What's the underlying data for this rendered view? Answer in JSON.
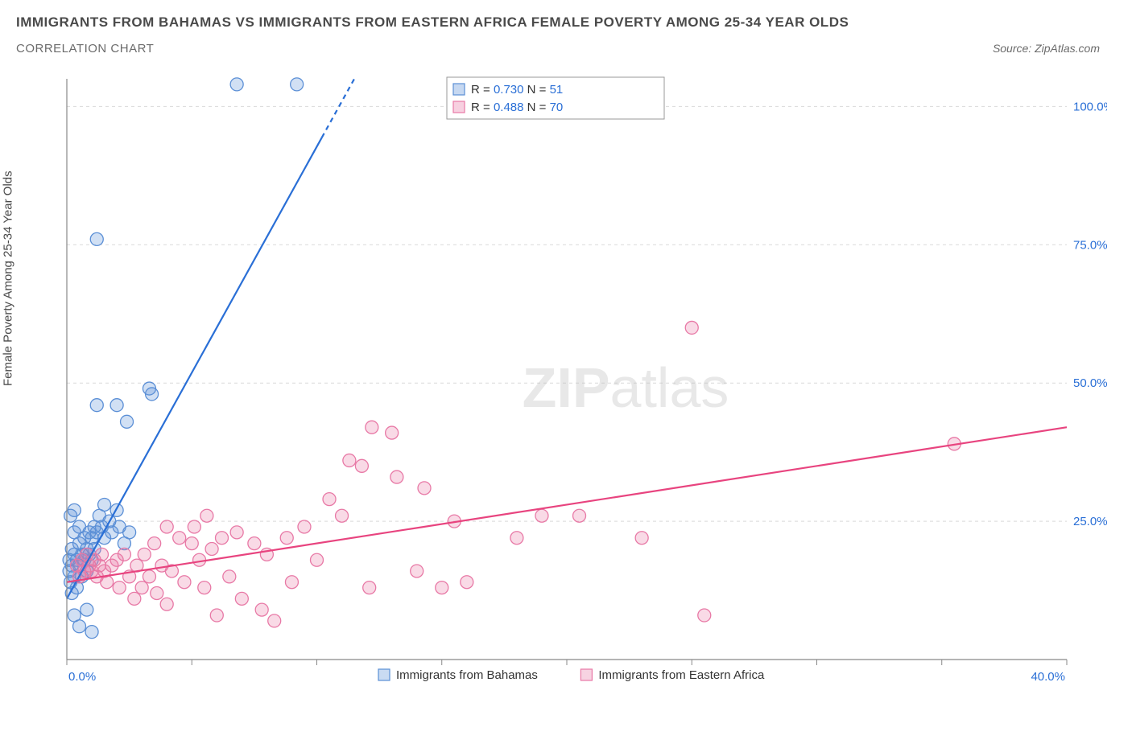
{
  "title": "IMMIGRANTS FROM BAHAMAS VS IMMIGRANTS FROM EASTERN AFRICA FEMALE POVERTY AMONG 25-34 YEAR OLDS",
  "subtitle": "CORRELATION CHART",
  "source": "Source: ZipAtlas.com",
  "ylabel": "Female Poverty Among 25-34 Year Olds",
  "chart": {
    "type": "scatter",
    "background_color": "#ffffff",
    "grid_color": "#d9d9d9",
    "axis_color": "#888888",
    "tick_color": "#888888",
    "label_color": "#2a6fd6",
    "watermark_text": "ZIPatlas",
    "xlim": [
      0,
      40
    ],
    "ylim": [
      0,
      105
    ],
    "x_ticks": [
      0,
      5,
      10,
      15,
      20,
      25,
      30,
      35,
      40
    ],
    "x_tick_labels": {
      "0": "0.0%",
      "40": "40.0%"
    },
    "y_ticks": [
      25,
      50,
      75,
      100
    ],
    "y_tick_labels": {
      "25": "25.0%",
      "50": "50.0%",
      "75": "75.0%",
      "100": "100.0%"
    },
    "marker_radius": 8,
    "marker_fill_opacity": 0.28,
    "marker_stroke_width": 1.3,
    "line_width": 2.2,
    "series": [
      {
        "name": "Immigrants from Bahamas",
        "color": "#5b8fd6",
        "line_color": "#2a6fd6",
        "R": "0.730",
        "N": "51",
        "trend": {
          "x1": 0,
          "y1": 11,
          "x2": 11.5,
          "y2": 105,
          "dash_from_x": 10.2
        },
        "points": [
          [
            0.1,
            18
          ],
          [
            0.1,
            16
          ],
          [
            0.15,
            14
          ],
          [
            0.2,
            17
          ],
          [
            0.2,
            20
          ],
          [
            0.2,
            12
          ],
          [
            0.3,
            19
          ],
          [
            0.3,
            15
          ],
          [
            0.3,
            23
          ],
          [
            0.4,
            18
          ],
          [
            0.4,
            13
          ],
          [
            0.5,
            21
          ],
          [
            0.5,
            17
          ],
          [
            0.5,
            24
          ],
          [
            0.6,
            19
          ],
          [
            0.6,
            15
          ],
          [
            0.7,
            22
          ],
          [
            0.7,
            18
          ],
          [
            0.8,
            20
          ],
          [
            0.8,
            16
          ],
          [
            0.9,
            23
          ],
          [
            0.9,
            19
          ],
          [
            1.0,
            22
          ],
          [
            1.0,
            18
          ],
          [
            1.1,
            24
          ],
          [
            1.1,
            20
          ],
          [
            1.2,
            23
          ],
          [
            1.3,
            26
          ],
          [
            1.4,
            24
          ],
          [
            1.5,
            22
          ],
          [
            1.5,
            28
          ],
          [
            1.7,
            25
          ],
          [
            1.8,
            23
          ],
          [
            2.0,
            27
          ],
          [
            2.1,
            24
          ],
          [
            2.3,
            21
          ],
          [
            2.5,
            23
          ],
          [
            0.3,
            8
          ],
          [
            0.5,
            6
          ],
          [
            0.8,
            9
          ],
          [
            1.0,
            5
          ],
          [
            1.2,
            46
          ],
          [
            2.0,
            46
          ],
          [
            2.4,
            43
          ],
          [
            3.3,
            49
          ],
          [
            3.4,
            48
          ],
          [
            1.2,
            76
          ],
          [
            6.8,
            104
          ],
          [
            9.2,
            104
          ],
          [
            0.3,
            27
          ],
          [
            0.15,
            26
          ]
        ]
      },
      {
        "name": "Immigrants from Eastern Africa",
        "color": "#e879a6",
        "line_color": "#e8447f",
        "R": "0.488",
        "N": "70",
        "trend": {
          "x1": 0,
          "y1": 14,
          "x2": 40,
          "y2": 42
        },
        "points": [
          [
            0.4,
            17
          ],
          [
            0.5,
            15
          ],
          [
            0.6,
            18
          ],
          [
            0.7,
            16
          ],
          [
            0.8,
            19
          ],
          [
            0.9,
            17
          ],
          [
            1.0,
            16
          ],
          [
            1.1,
            18
          ],
          [
            1.2,
            15
          ],
          [
            1.3,
            17
          ],
          [
            1.4,
            19
          ],
          [
            1.5,
            16
          ],
          [
            1.6,
            14
          ],
          [
            1.8,
            17
          ],
          [
            2.0,
            18
          ],
          [
            2.1,
            13
          ],
          [
            2.3,
            19
          ],
          [
            2.5,
            15
          ],
          [
            2.7,
            11
          ],
          [
            2.8,
            17
          ],
          [
            3.0,
            13
          ],
          [
            3.1,
            19
          ],
          [
            3.3,
            15
          ],
          [
            3.5,
            21
          ],
          [
            3.6,
            12
          ],
          [
            3.8,
            17
          ],
          [
            4.0,
            10
          ],
          [
            4.2,
            16
          ],
          [
            4.5,
            22
          ],
          [
            4.7,
            14
          ],
          [
            5.0,
            21
          ],
          [
            5.1,
            24
          ],
          [
            5.3,
            18
          ],
          [
            5.5,
            13
          ],
          [
            5.8,
            20
          ],
          [
            6.0,
            8
          ],
          [
            6.2,
            22
          ],
          [
            6.5,
            15
          ],
          [
            6.8,
            23
          ],
          [
            7.0,
            11
          ],
          [
            7.5,
            21
          ],
          [
            7.8,
            9
          ],
          [
            8.0,
            19
          ],
          [
            8.3,
            7
          ],
          [
            8.8,
            22
          ],
          [
            9.0,
            14
          ],
          [
            9.5,
            24
          ],
          [
            10.0,
            18
          ],
          [
            10.5,
            29
          ],
          [
            11.0,
            26
          ],
          [
            11.3,
            36
          ],
          [
            11.8,
            35
          ],
          [
            12.1,
            13
          ],
          [
            12.2,
            42
          ],
          [
            13.0,
            41
          ],
          [
            13.2,
            33
          ],
          [
            14.0,
            16
          ],
          [
            14.3,
            31
          ],
          [
            15.0,
            13
          ],
          [
            15.5,
            25
          ],
          [
            16.0,
            14
          ],
          [
            18.0,
            22
          ],
          [
            19.0,
            26
          ],
          [
            20.5,
            26
          ],
          [
            23.0,
            22
          ],
          [
            25.0,
            60
          ],
          [
            25.5,
            8
          ],
          [
            35.5,
            39
          ],
          [
            4.0,
            24
          ],
          [
            5.6,
            26
          ]
        ]
      }
    ]
  },
  "legend_bottom": {
    "items": [
      {
        "label": "Immigrants from Bahamas",
        "fill": "#c9dbf2",
        "stroke": "#5b8fd6"
      },
      {
        "label": "Immigrants from Eastern Africa",
        "fill": "#f7d3e2",
        "stroke": "#e879a6"
      }
    ]
  }
}
